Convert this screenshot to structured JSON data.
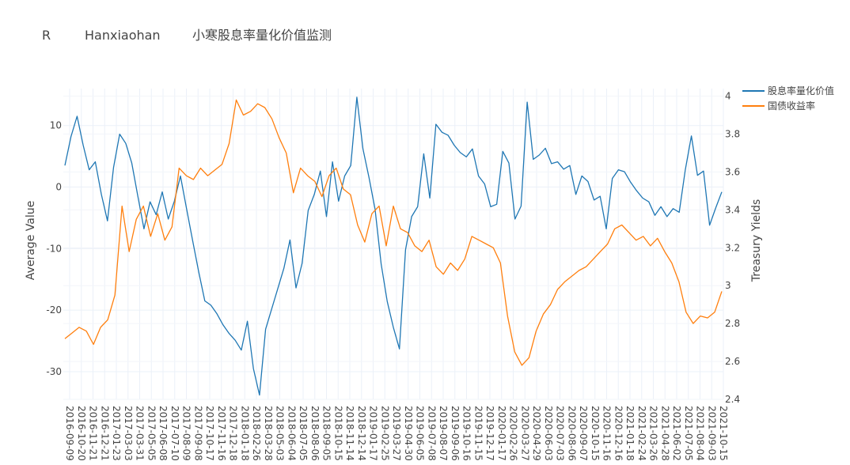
{
  "chart_data": {
    "type": "line",
    "title_parts": [
      "R",
      "Hanxiaohan",
      "小寒股息率量化价值监测"
    ],
    "y_left_label": "Average Value",
    "y_right_label": "Treasury Yields",
    "y_left_ticks": [
      10,
      0,
      -10,
      -20,
      -30
    ],
    "y_left_range": [
      -34.5,
      16
    ],
    "y_right_ticks": [
      4,
      3.8,
      3.6,
      3.4,
      3.2,
      3,
      2.8,
      2.6,
      2.4
    ],
    "y_right_range": [
      2.4,
      4.04
    ],
    "legend_position": "top-right",
    "x_tick_labels": [
      "2016-09-09",
      "2016-10-20",
      "2016-11-21",
      "2016-12-21",
      "2017-01-23",
      "2017-03-03",
      "2017-03-31",
      "2017-05-05",
      "2017-06-08",
      "2017-07-10",
      "2017-08-09",
      "2017-09-08",
      "2017-10-17",
      "2017-11-16",
      "2017-12-18",
      "2018-01-18",
      "2018-02-26",
      "2018-03-28",
      "2018-05-03",
      "2018-06-04",
      "2018-07-05",
      "2018-08-06",
      "2018-09-05",
      "2018-10-15",
      "2018-11-14",
      "2018-12-14",
      "2019-01-17",
      "2019-02-25",
      "2019-03-27",
      "2019-04-30",
      "2019-06-05",
      "2019-07-08",
      "2019-08-07",
      "2019-09-06",
      "2019-10-16",
      "2019-11-15",
      "2019-12-17",
      "2020-01-17",
      "2020-02-26",
      "2020-03-27",
      "2020-04-29",
      "2020-06-03",
      "2020-07-03",
      "2020-08-06",
      "2020-09-07",
      "2020-10-15",
      "2020-11-16",
      "2020-12-16",
      "2021-01-18",
      "2021-02-24",
      "2021-03-26",
      "2021-04-28",
      "2021-06-02",
      "2021-07-05",
      "2021-08-04",
      "2021-09-03",
      "2021-10-15"
    ],
    "series": [
      {
        "name": "股息率量化价值",
        "axis": "left",
        "color": "#1f77b4",
        "values": [
          3.5,
          8.2,
          11.5,
          6.8,
          2.8,
          4.1,
          -1.2,
          -5.5,
          3.2,
          8.6,
          7.1,
          3.9,
          -1.5,
          -6.8,
          -2.4,
          -4.5,
          -0.8,
          -5.2,
          -2.3,
          1.8,
          -3.5,
          -8.7,
          -13.8,
          -18.5,
          -19.2,
          -20.6,
          -22.4,
          -23.8,
          -24.9,
          -26.5,
          -21.8,
          -29.5,
          -33.8,
          -23.1,
          -19.8,
          -16.5,
          -13.2,
          -8.6,
          -16.4,
          -12.4,
          -3.8,
          -1.2,
          2.6,
          -4.8,
          4.1,
          -2.3,
          1.8,
          3.5,
          14.6,
          6.2,
          1.5,
          -3.6,
          -12.5,
          -18.6,
          -22.8,
          -26.3,
          -10.2,
          -4.8,
          -3.2,
          5.4,
          -1.8,
          10.2,
          8.9,
          8.4,
          6.8,
          5.6,
          4.9,
          6.2,
          1.8,
          0.5,
          -3.2,
          -2.8,
          5.8,
          3.9,
          -5.2,
          -3.1,
          13.8,
          4.5,
          5.2,
          6.3,
          3.8,
          4.1,
          2.9,
          3.5,
          -1.2,
          1.8,
          0.9,
          -2.1,
          -1.5,
          -6.8,
          1.4,
          2.8,
          2.5,
          0.8,
          -0.6,
          -1.8,
          -2.4,
          -4.6,
          -3.2,
          -4.8,
          -3.5,
          -4.1,
          2.8,
          8.3,
          1.9,
          2.6,
          -6.2,
          -3.4,
          -0.8
        ]
      },
      {
        "name": "国债收益率",
        "axis": "right",
        "color": "#ff7f0e",
        "values": [
          2.72,
          2.75,
          2.78,
          2.76,
          2.69,
          2.78,
          2.82,
          2.95,
          3.42,
          3.18,
          3.35,
          3.42,
          3.26,
          3.38,
          3.24,
          3.31,
          3.62,
          3.58,
          3.56,
          3.62,
          3.58,
          3.61,
          3.64,
          3.75,
          3.98,
          3.9,
          3.92,
          3.96,
          3.94,
          3.88,
          3.78,
          3.7,
          3.49,
          3.62,
          3.58,
          3.55,
          3.47,
          3.58,
          3.62,
          3.51,
          3.48,
          3.32,
          3.23,
          3.38,
          3.42,
          3.21,
          3.42,
          3.3,
          3.28,
          3.21,
          3.18,
          3.24,
          3.1,
          3.06,
          3.12,
          3.08,
          3.14,
          3.26,
          3.24,
          3.22,
          3.2,
          3.12,
          2.84,
          2.65,
          2.58,
          2.62,
          2.76,
          2.85,
          2.9,
          2.98,
          3.02,
          3.05,
          3.08,
          3.1,
          3.14,
          3.18,
          3.22,
          3.3,
          3.32,
          3.28,
          3.24,
          3.26,
          3.21,
          3.25,
          3.18,
          3.12,
          3.02,
          2.86,
          2.8,
          2.84,
          2.83,
          2.86,
          2.97
        ]
      }
    ]
  }
}
